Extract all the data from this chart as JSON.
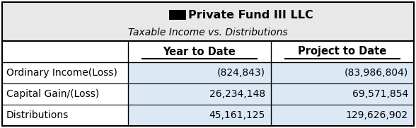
{
  "title": "Private Fund III LLC",
  "subtitle": "Taxable Income vs. Distributions",
  "col_headers": [
    "Year to Date",
    "Project to Date"
  ],
  "row_labels": [
    "Ordinary Income(Loss)",
    "Capital Gain/(Loss)",
    "Distributions"
  ],
  "col1_values": [
    "(824,843)",
    "26,234,148",
    "45,161,125"
  ],
  "col2_values": [
    "(83,986,804)",
    "69,571,854",
    "129,626,902"
  ],
  "header_bg": "#e8e8e8",
  "data_bg": "#dce9f5",
  "white_bg": "#ffffff",
  "border_color": "#000000",
  "text_color": "#000000",
  "title_fontsize": 11.5,
  "subtitle_fontsize": 10,
  "col_header_fontsize": 10.5,
  "data_fontsize": 10,
  "logo_color": "#000000",
  "fig_width": 5.88,
  "fig_height": 1.81,
  "dpi": 100
}
